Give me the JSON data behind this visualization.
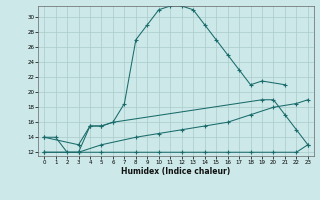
{
  "xlabel": "Humidex (Indice chaleur)",
  "bg_color": "#cce8e8",
  "grid_color": "#aacccc",
  "line_color": "#1a6b6b",
  "xlim": [
    -0.5,
    23.5
  ],
  "ylim": [
    11.5,
    31.5
  ],
  "xticks": [
    0,
    1,
    2,
    3,
    4,
    5,
    6,
    7,
    8,
    9,
    10,
    11,
    12,
    13,
    14,
    15,
    16,
    17,
    18,
    19,
    20,
    21,
    22,
    23
  ],
  "yticks": [
    12,
    14,
    16,
    18,
    20,
    22,
    24,
    26,
    28,
    30
  ],
  "series": [
    {
      "x": [
        0,
        1,
        2,
        3,
        4,
        5,
        6,
        7,
        8,
        9,
        10,
        11,
        12,
        13,
        14,
        15,
        16,
        17,
        18,
        19,
        21
      ],
      "y": [
        14,
        14,
        12,
        12,
        15.5,
        15.5,
        16,
        18.5,
        27,
        29,
        31,
        31.5,
        31.5,
        31,
        29,
        27,
        25,
        23,
        21,
        21.5,
        21
      ]
    },
    {
      "x": [
        0,
        3,
        4,
        5,
        6,
        19,
        20,
        21,
        22,
        23
      ],
      "y": [
        14,
        13,
        15.5,
        15.5,
        16,
        19,
        19,
        17,
        15,
        13
      ]
    },
    {
      "x": [
        0,
        3,
        5,
        8,
        10,
        12,
        14,
        16,
        18,
        20,
        22,
        23
      ],
      "y": [
        12,
        12,
        12,
        12,
        12,
        12,
        12,
        12,
        12,
        12,
        12,
        13
      ]
    },
    {
      "x": [
        0,
        3,
        5,
        8,
        10,
        12,
        14,
        16,
        18,
        20,
        22,
        23
      ],
      "y": [
        12,
        12,
        13,
        14,
        14.5,
        15,
        15.5,
        16,
        17,
        18,
        18.5,
        19
      ]
    }
  ]
}
